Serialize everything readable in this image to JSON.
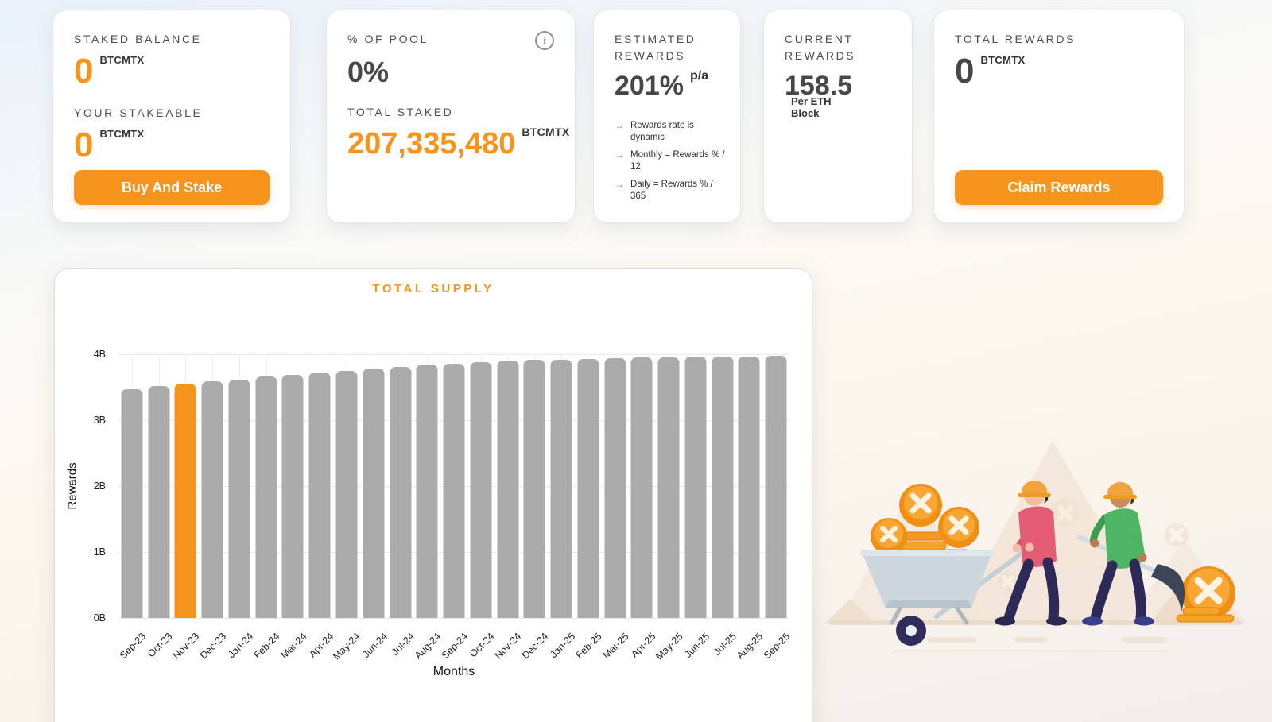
{
  "theme": {
    "accent": "#F7941E",
    "bar_gray": "#ABABAB",
    "dark_text": "#474747",
    "label_text": "#4D4D4D",
    "background_top": "#E9F1FA",
    "background_bottom": "#F1EEEB"
  },
  "cards": {
    "staked": {
      "label": "STAKED BALANCE",
      "value": "0",
      "unit": "BTCMTX",
      "stakeable_label": "YOUR STAKEABLE",
      "stakeable_value": "0",
      "stakeable_unit": "BTCMTX",
      "buy_button": "Buy And Stake"
    },
    "pool": {
      "label": "% OF POOL",
      "value": "0%",
      "info_icon_glyph": "i",
      "total_staked_label": "TOTAL STAKED",
      "total_staked_value": "207,335,480",
      "unit": "BTCMTX"
    },
    "estimated": {
      "label": "ESTIMATED REWARDS",
      "value": "201%",
      "per": "p/a",
      "notes": [
        "Rewards rate is dynamic",
        "Monthly = Rewards % / 12",
        "Daily = Rewards % / 365"
      ]
    },
    "current": {
      "label": "CURRENT REWARDS",
      "value": "158.5",
      "per": "Per ETH Block"
    },
    "total": {
      "label": "TOTAL REWARDS",
      "value": "0",
      "unit": "BTCMTX",
      "claim_button": "Claim Rewards"
    }
  },
  "chart_data": {
    "type": "bar",
    "title": "TOTAL SUPPLY",
    "xlabel": "Months",
    "ylabel": "Rewards",
    "ylim_billions": [
      0,
      4
    ],
    "yticks": [
      "0B",
      "1B",
      "2B",
      "3B",
      "4B"
    ],
    "grid": "on",
    "categories": [
      "Sep-23",
      "Oct-23",
      "Nov-23",
      "Dec-23",
      "Jan-24",
      "Feb-24",
      "Mar-24",
      "Apr-24",
      "May-24",
      "Jun-24",
      "Jul-24",
      "Aug-24",
      "Sep-24",
      "Oct-24",
      "Nov-24",
      "Dec-24",
      "Jan-25",
      "Feb-25",
      "Mar-25",
      "Apr-25",
      "May-25",
      "Jun-25",
      "Jul-25",
      "Aug-25",
      "Sep-25"
    ],
    "values_billions": [
      3.47,
      3.52,
      3.55,
      3.59,
      3.62,
      3.66,
      3.69,
      3.72,
      3.75,
      3.78,
      3.81,
      3.84,
      3.86,
      3.88,
      3.9,
      3.91,
      3.92,
      3.93,
      3.94,
      3.95,
      3.955,
      3.96,
      3.965,
      3.97,
      3.975
    ],
    "highlight_index": 2,
    "bar_color": "#ABABAB",
    "highlight_color": "#F7941E"
  }
}
